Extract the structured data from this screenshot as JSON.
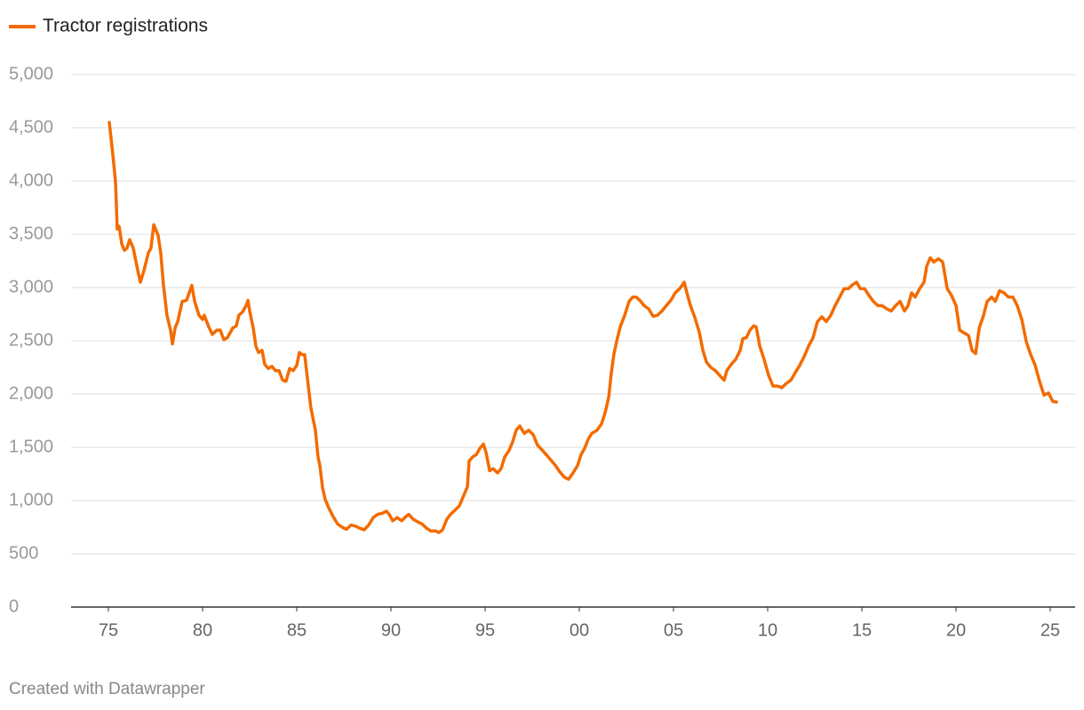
{
  "chart_data": {
    "type": "line",
    "legend": "top-left",
    "grid": true,
    "credit": "Created with Datawrapper",
    "x": [
      1975.05,
      1975.24,
      1975.38,
      1975.47,
      1975.57,
      1975.71,
      1975.85,
      1975.99,
      1976.13,
      1976.32,
      1976.56,
      1976.7,
      1976.89,
      1977.12,
      1977.26,
      1977.41,
      1977.64,
      1977.78,
      1977.92,
      1978.11,
      1978.3,
      1978.4,
      1978.54,
      1978.68,
      1978.92,
      1979.15,
      1979.29,
      1979.43,
      1979.58,
      1979.81,
      1980,
      1980.09,
      1980.33,
      1980.52,
      1980.75,
      1980.94,
      1981.13,
      1981.32,
      1981.6,
      1981.79,
      1981.93,
      1982.12,
      1982.31,
      1982.41,
      1982.5,
      1982.69,
      1982.83,
      1982.97,
      1983.16,
      1983.3,
      1983.49,
      1983.68,
      1983.87,
      1984.06,
      1984.25,
      1984.43,
      1984.62,
      1984.81,
      1985,
      1985.14,
      1985.28,
      1985.42,
      1985.61,
      1985.75,
      1985.99,
      1986.13,
      1986.23,
      1986.37,
      1986.51,
      1986.7,
      1986.93,
      1987.17,
      1987.41,
      1987.64,
      1987.88,
      1988.11,
      1988.35,
      1988.58,
      1988.82,
      1989.06,
      1989.29,
      1989.53,
      1989.76,
      1989.91,
      1990.09,
      1990.33,
      1990.57,
      1990.8,
      1990.94,
      1991.18,
      1991.42,
      1991.65,
      1991.89,
      1992.12,
      1992.36,
      1992.55,
      1992.74,
      1992.97,
      1993.16,
      1993.4,
      1993.63,
      1993.87,
      1994.06,
      1994.15,
      1994.34,
      1994.53,
      1994.72,
      1994.91,
      1995.05,
      1995.24,
      1995.42,
      1995.66,
      1995.85,
      1996.04,
      1996.27,
      1996.46,
      1996.65,
      1996.84,
      1997.08,
      1997.31,
      1997.55,
      1997.78,
      1998.02,
      1998.25,
      1998.49,
      1998.73,
      1998.96,
      1999.2,
      1999.43,
      1999.67,
      1999.91,
      2000.09,
      2000.28,
      2000.47,
      2000.66,
      2000.94,
      2001.18,
      2001.37,
      2001.56,
      2001.7,
      2001.84,
      2002.03,
      2002.17,
      2002.41,
      2002.64,
      2002.83,
      2003.02,
      2003.21,
      2003.44,
      2003.68,
      2003.92,
      2004.15,
      2004.39,
      2004.62,
      2004.86,
      2005.09,
      2005.33,
      2005.57,
      2005.71,
      2005.9,
      2006.13,
      2006.37,
      2006.56,
      2006.75,
      2006.98,
      2007.22,
      2007.45,
      2007.69,
      2007.83,
      2008.07,
      2008.3,
      2008.54,
      2008.68,
      2008.87,
      2009.06,
      2009.25,
      2009.39,
      2009.58,
      2009.81,
      2010.05,
      2010.28,
      2010.52,
      2010.75,
      2010.99,
      2011.23,
      2011.46,
      2011.7,
      2011.93,
      2012.17,
      2012.41,
      2012.64,
      2012.88,
      2013.11,
      2013.35,
      2013.58,
      2013.82,
      2014.06,
      2014.29,
      2014.53,
      2014.72,
      2014.91,
      2015.14,
      2015.38,
      2015.61,
      2015.85,
      2016.08,
      2016.32,
      2016.56,
      2016.79,
      2017.03,
      2017.26,
      2017.45,
      2017.64,
      2017.83,
      2018.07,
      2018.3,
      2018.44,
      2018.63,
      2018.82,
      2019.06,
      2019.29,
      2019.53,
      2019.76,
      2020,
      2020.19,
      2020.42,
      2020.66,
      2020.85,
      2021.04,
      2021.23,
      2021.46,
      2021.65,
      2021.89,
      2022.08,
      2022.31,
      2022.55,
      2022.78,
      2023.02,
      2023.25,
      2023.49,
      2023.73,
      2023.96,
      2024.2,
      2024.43,
      2024.67,
      2024.91,
      2025.14,
      2025.33
    ],
    "series": [
      {
        "name": "Tractor registrations",
        "color": "#f26b00",
        "values": [
          4550,
          4240,
          3990,
          3550,
          3575,
          3410,
          3350,
          3370,
          3450,
          3370,
          3160,
          3050,
          3160,
          3325,
          3370,
          3590,
          3490,
          3325,
          3030,
          2740,
          2600,
          2470,
          2620,
          2680,
          2870,
          2880,
          2950,
          3020,
          2870,
          2740,
          2700,
          2740,
          2630,
          2560,
          2600,
          2600,
          2510,
          2530,
          2620,
          2640,
          2740,
          2770,
          2830,
          2880,
          2780,
          2620,
          2450,
          2390,
          2410,
          2280,
          2240,
          2260,
          2220,
          2220,
          2130,
          2120,
          2240,
          2220,
          2270,
          2390,
          2370,
          2370,
          2080,
          1870,
          1660,
          1410,
          1325,
          1120,
          1010,
          930,
          850,
          780,
          750,
          730,
          770,
          760,
          740,
          725,
          770,
          840,
          870,
          880,
          900,
          870,
          810,
          840,
          810,
          850,
          870,
          825,
          800,
          780,
          740,
          715,
          715,
          700,
          725,
          825,
          870,
          910,
          950,
          1050,
          1130,
          1370,
          1410,
          1430,
          1490,
          1530,
          1450,
          1280,
          1300,
          1260,
          1300,
          1410,
          1470,
          1550,
          1660,
          1700,
          1630,
          1660,
          1620,
          1520,
          1475,
          1430,
          1380,
          1330,
          1270,
          1220,
          1200,
          1260,
          1330,
          1430,
          1490,
          1575,
          1630,
          1660,
          1720,
          1825,
          1970,
          2200,
          2380,
          2530,
          2630,
          2740,
          2870,
          2910,
          2910,
          2880,
          2830,
          2800,
          2730,
          2740,
          2780,
          2830,
          2880,
          2950,
          2990,
          3050,
          2950,
          2830,
          2720,
          2580,
          2410,
          2300,
          2250,
          2220,
          2175,
          2130,
          2220,
          2280,
          2325,
          2410,
          2520,
          2530,
          2600,
          2640,
          2630,
          2450,
          2325,
          2175,
          2075,
          2075,
          2060,
          2100,
          2130,
          2200,
          2270,
          2350,
          2450,
          2530,
          2680,
          2725,
          2680,
          2740,
          2830,
          2910,
          2990,
          2990,
          3030,
          3050,
          2990,
          2990,
          2925,
          2870,
          2830,
          2830,
          2800,
          2780,
          2830,
          2870,
          2780,
          2830,
          2950,
          2910,
          2990,
          3050,
          3200,
          3280,
          3240,
          3270,
          3240,
          2990,
          2925,
          2830,
          2600,
          2575,
          2550,
          2410,
          2380,
          2620,
          2740,
          2870,
          2910,
          2870,
          2970,
          2950,
          2910,
          2910,
          2830,
          2700,
          2490,
          2370,
          2270,
          2120,
          1990,
          2010,
          1930,
          1925
        ]
      }
    ],
    "xlim": [
      1973.02,
      2026.32
    ],
    "xticks": [
      {
        "value": 1975,
        "label": "75"
      },
      {
        "value": 1980,
        "label": "80"
      },
      {
        "value": 1985,
        "label": "85"
      },
      {
        "value": 1990,
        "label": "90"
      },
      {
        "value": 1995,
        "label": "95"
      },
      {
        "value": 2000,
        "label": "00"
      },
      {
        "value": 2005,
        "label": "05"
      },
      {
        "value": 2010,
        "label": "10"
      },
      {
        "value": 2015,
        "label": "15"
      },
      {
        "value": 2020,
        "label": "20"
      },
      {
        "value": 2025,
        "label": "25"
      }
    ],
    "ylim": [
      0,
      5000
    ],
    "yticks": [
      0,
      500,
      {
        "value": 1000,
        "label": "1,000"
      },
      {
        "value": 1500,
        "label": "1,500"
      },
      {
        "value": 2000,
        "label": "2,000"
      },
      {
        "value": 2500,
        "label": "2,500"
      },
      {
        "value": 3000,
        "label": "3,000"
      },
      {
        "value": 3500,
        "label": "3,500"
      },
      {
        "value": 4000,
        "label": "4,000"
      },
      {
        "value": 4500,
        "label": "4,500"
      },
      {
        "value": 5000,
        "label": "5,000"
      }
    ]
  }
}
